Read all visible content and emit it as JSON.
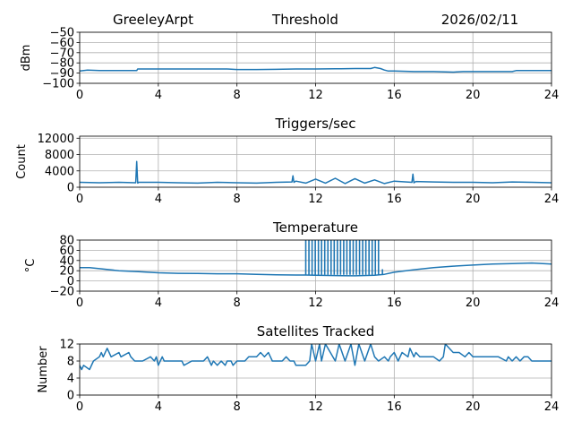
{
  "header": {
    "station": "GreeleyArpt",
    "title": "Threshold",
    "date": "2026/02/11"
  },
  "chart_data": [
    {
      "type": "line",
      "title": "",
      "ylabel": "dBm",
      "xlabel": "",
      "xlim": [
        0,
        24
      ],
      "ylim": [
        -100,
        -50
      ],
      "xticks": [
        0,
        4,
        8,
        12,
        16,
        20,
        24
      ],
      "yticks": [
        -100,
        -90,
        -80,
        -70,
        -60,
        -50
      ],
      "ytick_labels": [
        "−100",
        "−90",
        "−80",
        "−70",
        "−60",
        "−50"
      ],
      "grid": true,
      "series": [
        {
          "color": "#1f77b4",
          "x": [
            0,
            0.4,
            1.0,
            2.0,
            2.9,
            2.95,
            4,
            6,
            7.5,
            8,
            9,
            10,
            11,
            12,
            13,
            14,
            14.8,
            15.0,
            15.3,
            15.5,
            15.7,
            16.0,
            17,
            18,
            19,
            19.5,
            20,
            21,
            22,
            22.2,
            23,
            24
          ],
          "y": [
            -88,
            -87,
            -87.5,
            -87.5,
            -87.5,
            -86,
            -86,
            -86,
            -86,
            -86.5,
            -86.5,
            -86.3,
            -86,
            -86,
            -85.8,
            -85.5,
            -85.5,
            -84.5,
            -85.5,
            -87,
            -88,
            -88,
            -88.5,
            -88.5,
            -89,
            -88.5,
            -88.5,
            -88.5,
            -88.5,
            -87.5,
            -87.5,
            -87.5
          ]
        }
      ]
    },
    {
      "type": "line",
      "title": "Triggers/sec",
      "ylabel": "Count",
      "xlabel": "",
      "xlim": [
        0,
        24
      ],
      "ylim": [
        0,
        12500
      ],
      "xticks": [
        0,
        4,
        8,
        12,
        16,
        20,
        24
      ],
      "yticks": [
        0,
        4000,
        8000,
        12000
      ],
      "grid": true,
      "series": [
        {
          "color": "#1f77b4",
          "x": [
            0,
            1,
            2,
            2.85,
            2.9,
            2.95,
            3.0,
            4,
            5,
            6,
            7,
            8,
            9,
            10,
            10.8,
            10.85,
            10.9,
            11,
            11.5,
            12,
            12.5,
            13,
            13.5,
            14,
            14.5,
            15,
            15.5,
            16,
            16.9,
            16.95,
            17.0,
            17.1,
            18,
            19,
            20,
            21,
            22,
            23,
            24
          ],
          "y": [
            1200,
            1100,
            1200,
            1100,
            6300,
            1000,
            1200,
            1200,
            1100,
            1000,
            1200,
            1100,
            1000,
            1200,
            1300,
            2800,
            1200,
            1500,
            1000,
            2000,
            1000,
            2200,
            900,
            2100,
            1000,
            1800,
            900,
            1500,
            1200,
            3200,
            1100,
            1400,
            1300,
            1200,
            1200,
            1100,
            1300,
            1200,
            1100
          ]
        }
      ]
    },
    {
      "type": "line",
      "title": "Temperature",
      "ylabel": "°C",
      "xlabel": "",
      "xlim": [
        0,
        24
      ],
      "ylim": [
        -20,
        80
      ],
      "xticks": [
        0,
        4,
        8,
        12,
        16,
        20,
        24
      ],
      "yticks": [
        -20,
        0,
        20,
        40,
        60,
        80
      ],
      "ytick_labels": [
        "−20",
        "0",
        "20",
        "40",
        "60",
        "80"
      ],
      "grid": true,
      "series": [
        {
          "color": "#1f77b4",
          "x": [
            0,
            0.5,
            1,
            2,
            3,
            4,
            5,
            6,
            7,
            8,
            9,
            10,
            11,
            11.5,
            12,
            13,
            14,
            15,
            15.5,
            16,
            17,
            18,
            19,
            20,
            21,
            22,
            23,
            24
          ],
          "y": [
            26,
            26,
            24,
            20,
            18,
            16,
            15,
            14.5,
            14,
            14,
            13,
            12,
            11.5,
            11.5,
            11,
            10.5,
            10,
            11,
            13,
            17,
            22,
            26,
            29,
            31,
            33,
            34,
            35,
            33
          ]
        },
        {
          "color": "#1f77b4",
          "spikes": {
            "from": 11.5,
            "to": 15.2,
            "count": 24,
            "top": 80,
            "base": 12
          }
        },
        {
          "color": "#1f77b4",
          "spikes": {
            "from": 15.4,
            "to": 15.4,
            "count": 1,
            "top": 23,
            "base": 12
          }
        }
      ]
    },
    {
      "type": "line",
      "title": "Satellites Tracked",
      "ylabel": "Number",
      "xlabel": "",
      "xlim": [
        0,
        24
      ],
      "ylim": [
        0,
        12
      ],
      "xticks": [
        0,
        4,
        8,
        12,
        16,
        20,
        24
      ],
      "yticks": [
        0,
        4,
        8,
        12
      ],
      "grid": true,
      "series": [
        {
          "color": "#1f77b4",
          "x": [
            0,
            0.1,
            0.2,
            0.5,
            0.7,
            1.0,
            1.1,
            1.2,
            1.4,
            1.5,
            1.6,
            2.0,
            2.1,
            2.5,
            2.6,
            2.8,
            3.0,
            3.2,
            3.6,
            3.8,
            3.9,
            4.0,
            4.2,
            4.3,
            4.5,
            5.2,
            5.3,
            5.7,
            6.0,
            6.3,
            6.5,
            6.6,
            6.7,
            6.8,
            7.0,
            7.2,
            7.4,
            7.5,
            7.7,
            7.8,
            8.0,
            8.2,
            8.4,
            8.6,
            9.0,
            9.2,
            9.4,
            9.6,
            9.7,
            9.8,
            10.0,
            10.3,
            10.5,
            10.7,
            10.9,
            11.0,
            11.5,
            11.7,
            11.8,
            12.0,
            12.2,
            12.3,
            12.5,
            13.0,
            13.2,
            13.5,
            13.8,
            14.0,
            14.2,
            14.5,
            14.8,
            15.0,
            15.2,
            15.5,
            15.7,
            15.8,
            16.0,
            16.2,
            16.4,
            16.7,
            16.8,
            17.0,
            17.1,
            17.3,
            17.6,
            17.8,
            18.0,
            18.3,
            18.5,
            18.6,
            18.8,
            19.0,
            19.2,
            19.3,
            19.6,
            19.8,
            20.0,
            20.5,
            21.0,
            21.3,
            21.7,
            21.8,
            22.0,
            22.2,
            22.4,
            22.6,
            22.8,
            23.0,
            23.2,
            23.4,
            24
          ],
          "y": [
            7,
            6,
            7,
            6,
            8,
            9,
            10,
            9,
            11,
            10,
            9,
            10,
            9,
            10,
            9,
            8,
            8,
            8,
            9,
            8,
            9,
            7,
            9,
            8,
            8,
            8,
            7,
            8,
            8,
            8,
            9,
            8,
            7,
            8,
            7,
            8,
            7,
            8,
            8,
            7,
            8,
            8,
            8,
            9,
            9,
            10,
            9,
            10,
            9,
            8,
            8,
            8,
            9,
            8,
            8,
            7,
            7,
            8,
            12,
            8,
            12,
            8,
            12,
            8,
            12,
            8,
            12,
            7,
            12,
            8,
            12,
            9,
            8,
            9,
            8,
            9,
            10,
            8,
            10,
            9,
            11,
            9,
            10,
            9,
            9,
            9,
            9,
            8,
            9,
            12,
            11,
            10,
            10,
            10,
            9,
            10,
            9,
            9,
            9,
            9,
            8,
            9,
            8,
            9,
            8,
            9,
            9,
            8,
            8,
            8,
            8
          ]
        }
      ]
    }
  ]
}
